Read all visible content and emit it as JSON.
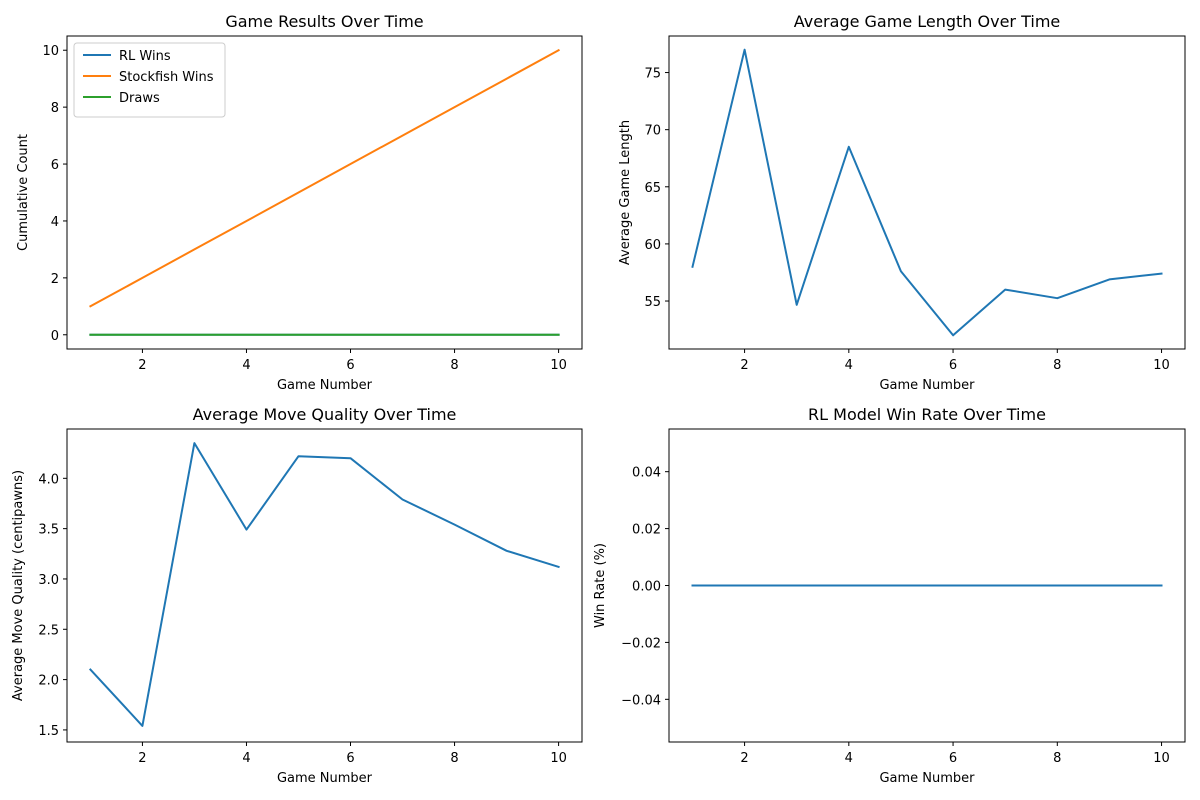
{
  "chart_data": [
    {
      "type": "line",
      "title": "Game Results Over Time",
      "xlabel": "Game Number",
      "ylabel": "Cumulative Count",
      "x": [
        1,
        2,
        3,
        4,
        5,
        6,
        7,
        8,
        9,
        10
      ],
      "xlim": [
        0.55,
        10.45
      ],
      "ylim": [
        -0.5,
        10.5
      ],
      "xticks": [
        2,
        4,
        6,
        8,
        10
      ],
      "yticks": [
        0,
        2,
        4,
        6,
        8,
        10
      ],
      "ytick_labels": [
        "0",
        "2",
        "4",
        "6",
        "8",
        "10"
      ],
      "grid": false,
      "legend": "top-left",
      "series": [
        {
          "name": "RL Wins",
          "color": "#1f77b4",
          "values": [
            0,
            0,
            0,
            0,
            0,
            0,
            0,
            0,
            0,
            0
          ]
        },
        {
          "name": "Stockfish Wins",
          "color": "#ff7f0e",
          "values": [
            1,
            2,
            3,
            4,
            5,
            6,
            7,
            8,
            9,
            10
          ]
        },
        {
          "name": "Draws",
          "color": "#2ca02c",
          "values": [
            0,
            0,
            0,
            0,
            0,
            0,
            0,
            0,
            0,
            0
          ]
        }
      ]
    },
    {
      "type": "line",
      "title": "Average Game Length Over Time",
      "xlabel": "Game Number",
      "ylabel": "Average Game Length",
      "x": [
        1,
        2,
        3,
        4,
        5,
        6,
        7,
        8,
        9,
        10
      ],
      "xlim": [
        0.55,
        10.45
      ],
      "ylim": [
        50.8,
        78.2
      ],
      "xticks": [
        2,
        4,
        6,
        8,
        10
      ],
      "yticks": [
        55,
        60,
        65,
        70,
        75
      ],
      "ytick_labels": [
        "55",
        "60",
        "65",
        "70",
        "75"
      ],
      "grid": false,
      "series": [
        {
          "color": "#1f77b4",
          "values": [
            58.0,
            77.0,
            54.67,
            68.5,
            57.6,
            52.0,
            56.0,
            55.25,
            56.89,
            57.4
          ]
        }
      ]
    },
    {
      "type": "line",
      "title": "Average Move Quality Over Time",
      "xlabel": "Game Number",
      "ylabel": "Average Move Quality (centipawns)",
      "x": [
        1,
        2,
        3,
        4,
        5,
        6,
        7,
        8,
        9,
        10
      ],
      "xlim": [
        0.55,
        10.45
      ],
      "ylim": [
        1.38,
        4.49
      ],
      "xticks": [
        2,
        4,
        6,
        8,
        10
      ],
      "yticks": [
        1.5,
        2.0,
        2.5,
        3.0,
        3.5,
        4.0
      ],
      "ytick_labels": [
        "1.5",
        "2.0",
        "2.5",
        "3.0",
        "3.5",
        "4.0"
      ],
      "grid": false,
      "series": [
        {
          "color": "#1f77b4",
          "values": [
            2.1,
            1.54,
            4.35,
            3.49,
            4.22,
            4.2,
            3.79,
            3.54,
            3.28,
            3.12
          ]
        }
      ]
    },
    {
      "type": "line",
      "title": "RL Model Win Rate Over Time",
      "xlabel": "Game Number",
      "ylabel": "Win Rate (%)",
      "x": [
        1,
        2,
        3,
        4,
        5,
        6,
        7,
        8,
        9,
        10
      ],
      "xlim": [
        0.55,
        10.45
      ],
      "ylim": [
        -0.055,
        0.055
      ],
      "xticks": [
        2,
        4,
        6,
        8,
        10
      ],
      "yticks": [
        -0.04,
        -0.02,
        0.0,
        0.02,
        0.04
      ],
      "ytick_labels": [
        "−0.04",
        "−0.02",
        "0.00",
        "0.02",
        "0.04"
      ],
      "grid": false,
      "series": [
        {
          "color": "#1f77b4",
          "values": [
            0,
            0,
            0,
            0,
            0,
            0,
            0,
            0,
            0,
            0
          ]
        }
      ]
    }
  ]
}
